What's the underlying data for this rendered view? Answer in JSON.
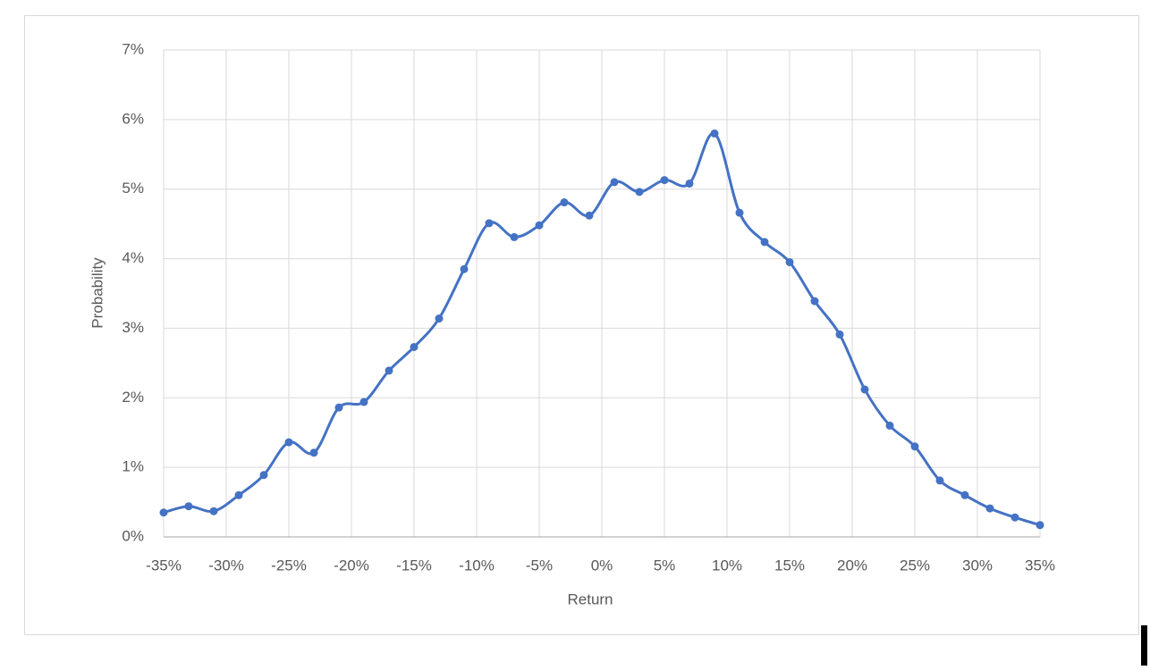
{
  "chart_data": {
    "type": "line",
    "x_label": "Return",
    "y_label": "Probability",
    "x": [
      -35,
      -33,
      -31,
      -29,
      -27,
      -25,
      -23,
      -21,
      -19,
      -17,
      -15,
      -13,
      -11,
      -9,
      -7,
      -5,
      -3,
      -1,
      1,
      3,
      5,
      7,
      9,
      11,
      13,
      15,
      17,
      19,
      21,
      23,
      25,
      27,
      29,
      31,
      33,
      35
    ],
    "series": [
      {
        "name": "Probability",
        "color": "#4472c4",
        "values": [
          0.35,
          0.44,
          0.37,
          0.6,
          0.89,
          1.36,
          1.21,
          1.86,
          1.94,
          2.39,
          2.73,
          3.14,
          3.85,
          4.51,
          4.31,
          4.48,
          4.81,
          4.62,
          5.1,
          4.96,
          5.13,
          5.08,
          5.8,
          4.66,
          4.24,
          3.95,
          3.39,
          2.91,
          2.12,
          1.6,
          1.3,
          0.81,
          0.6,
          0.41,
          0.28,
          0.17
        ]
      }
    ],
    "xlim": [
      -35,
      35
    ],
    "xticks": [
      {
        "value": -35,
        "label": "-35%"
      },
      {
        "value": -30,
        "label": "-30%"
      },
      {
        "value": -25,
        "label": "-25%"
      },
      {
        "value": -20,
        "label": "-20%"
      },
      {
        "value": -15,
        "label": "-15%"
      },
      {
        "value": -10,
        "label": "-10%"
      },
      {
        "value": -5,
        "label": "-5%"
      },
      {
        "value": 0,
        "label": "0%"
      },
      {
        "value": 5,
        "label": "5%"
      },
      {
        "value": 10,
        "label": "10%"
      },
      {
        "value": 15,
        "label": "15%"
      },
      {
        "value": 20,
        "label": "20%"
      },
      {
        "value": 25,
        "label": "25%"
      },
      {
        "value": 30,
        "label": "30%"
      },
      {
        "value": 35,
        "label": "35%"
      }
    ],
    "ylim": [
      0,
      7
    ],
    "yticks": [
      {
        "value": 0,
        "label": "0%"
      },
      {
        "value": 1,
        "label": "1%"
      },
      {
        "value": 2,
        "label": "2%"
      },
      {
        "value": 3,
        "label": "3%"
      },
      {
        "value": 4,
        "label": "4%"
      },
      {
        "value": 5,
        "label": "5%"
      },
      {
        "value": 6,
        "label": "6%"
      },
      {
        "value": 7,
        "label": "7%"
      }
    ],
    "grid": true,
    "smooth": true
  }
}
